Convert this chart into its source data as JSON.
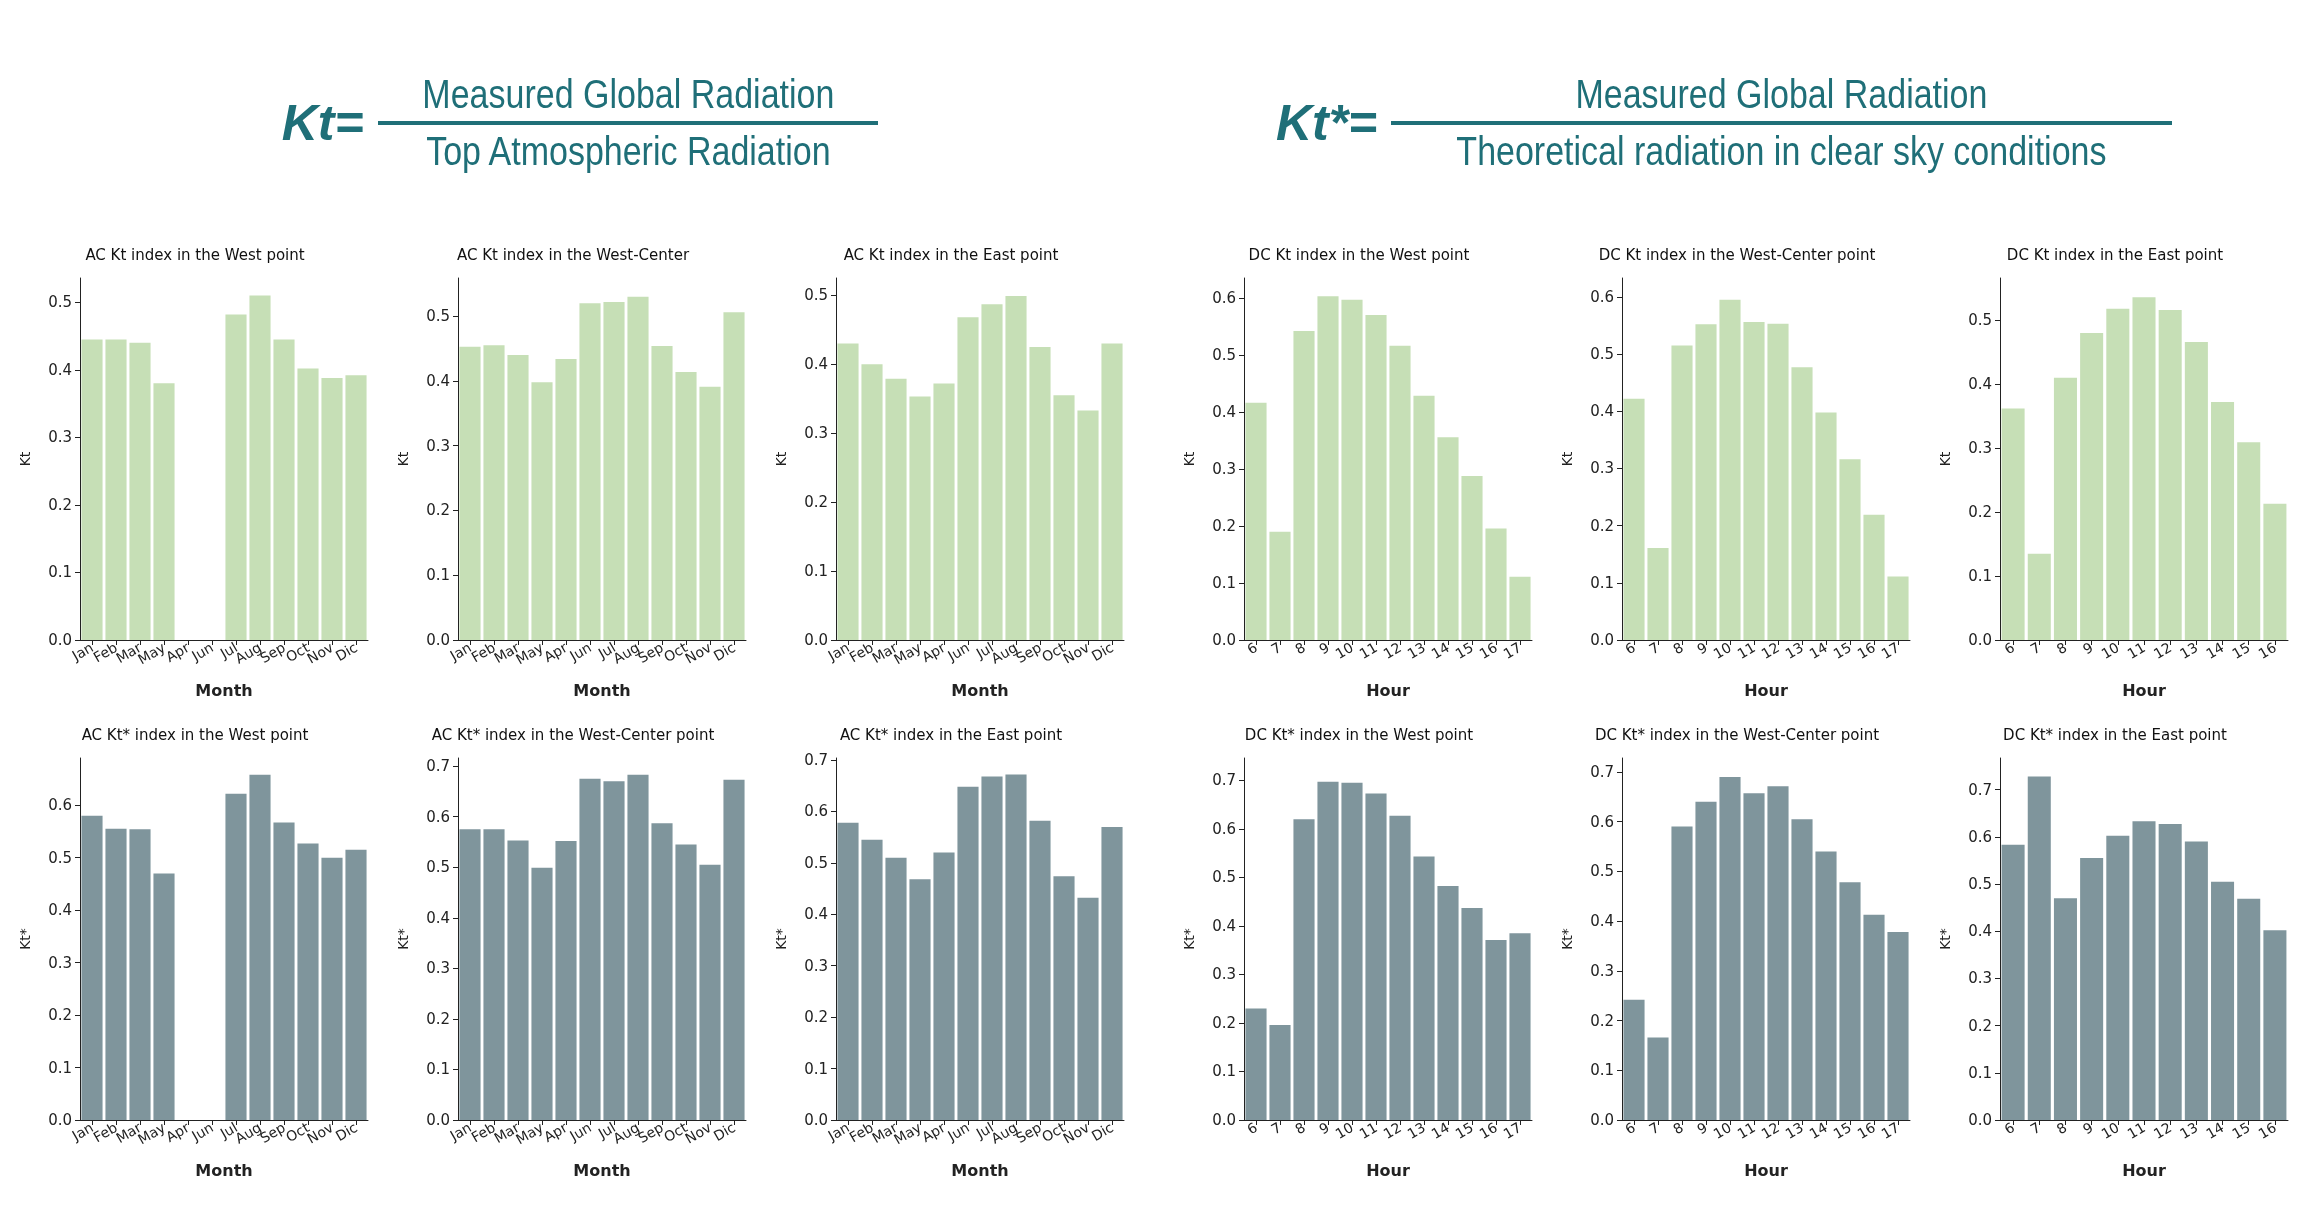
{
  "chart_data": [
    {
      "type": "other",
      "annotations": [
        "Kt=",
        "Measured Global Radiation",
        "Top Atmospheric Radiation"
      ]
    },
    {
      "type": "other",
      "annotations": [
        "Kt*=",
        "Measured Global Radiation",
        "Theoretical radiation in clear sky conditions"
      ]
    },
    {
      "type": "bar",
      "title": "AC Kt index in the West point",
      "xlabel": "Month",
      "ylabel": "Kt",
      "categories": [
        "Jan",
        "Feb",
        "Mar",
        "May",
        "Apr",
        "Jun",
        "Jul",
        "Aug",
        "Sep",
        "Oct",
        "Nov",
        "Dic"
      ],
      "values": [
        0.445,
        0.445,
        0.44,
        0.38,
        null,
        null,
        0.482,
        0.51,
        0.445,
        0.402,
        0.388,
        0.392
      ],
      "color": "#c6dfb6",
      "ylim": [
        0,
        0.536
      ],
      "yticks": [
        {
          "value": 0,
          "label": "0.0"
        },
        {
          "value": 0.1,
          "label": "0.1"
        },
        {
          "value": 0.2,
          "label": "0.2"
        },
        {
          "value": 0.3,
          "label": "0.3"
        },
        {
          "value": 0.4,
          "label": "0.4"
        },
        {
          "value": 0.5,
          "label": "0.5"
        }
      ]
    },
    {
      "type": "bar",
      "title": "AC Kt index in the West-Center",
      "xlabel": "Month",
      "ylabel": "Kt",
      "categories": [
        "Jan",
        "Feb",
        "Mar",
        "May",
        "Apr",
        "Jun",
        "Jul",
        "Aug",
        "Sep",
        "Oct",
        "Nov",
        "Dic"
      ],
      "values": [
        0.453,
        0.455,
        0.44,
        0.398,
        0.434,
        0.52,
        0.522,
        0.53,
        0.454,
        0.414,
        0.391,
        0.506
      ],
      "color": "#c6dfb6",
      "ylim": [
        0,
        0.559
      ],
      "yticks": [
        {
          "value": 0,
          "label": "0.0"
        },
        {
          "value": 0.1,
          "label": "0.1"
        },
        {
          "value": 0.2,
          "label": "0.2"
        },
        {
          "value": 0.3,
          "label": "0.3"
        },
        {
          "value": 0.4,
          "label": "0.4"
        },
        {
          "value": 0.5,
          "label": "0.5"
        }
      ]
    },
    {
      "type": "bar",
      "title": "AC Kt index in the East point",
      "xlabel": "Month",
      "ylabel": "Kt",
      "categories": [
        "Jan",
        "Feb",
        "Mar",
        "May",
        "Apr",
        "Jun",
        "Jul",
        "Aug",
        "Sep",
        "Oct",
        "Nov",
        "Dic"
      ],
      "values": [
        0.43,
        0.4,
        0.379,
        0.353,
        0.372,
        0.468,
        0.487,
        0.499,
        0.425,
        0.355,
        0.333,
        0.43
      ],
      "color": "#c6dfb6",
      "ylim": [
        0,
        0.525
      ],
      "yticks": [
        {
          "value": 0,
          "label": "0.0"
        },
        {
          "value": 0.1,
          "label": "0.1"
        },
        {
          "value": 0.2,
          "label": "0.2"
        },
        {
          "value": 0.3,
          "label": "0.3"
        },
        {
          "value": 0.4,
          "label": "0.4"
        },
        {
          "value": 0.5,
          "label": "0.5"
        }
      ]
    },
    {
      "type": "bar",
      "title": "DC Kt index in the West point",
      "xlabel": "Hour",
      "ylabel": "Kt",
      "categories": [
        "6",
        "7",
        "8",
        "9",
        "10",
        "11",
        "12",
        "13",
        "14",
        "15",
        "16",
        "17"
      ],
      "values": [
        0.417,
        0.19,
        0.543,
        0.604,
        0.598,
        0.571,
        0.517,
        0.429,
        0.356,
        0.288,
        0.196,
        0.111
      ],
      "color": "#c6dfb6",
      "ylim": [
        0,
        0.636
      ],
      "yticks": [
        {
          "value": 0,
          "label": "0.0"
        },
        {
          "value": 0.1,
          "label": "0.1"
        },
        {
          "value": 0.2,
          "label": "0.2"
        },
        {
          "value": 0.3,
          "label": "0.3"
        },
        {
          "value": 0.4,
          "label": "0.4"
        },
        {
          "value": 0.5,
          "label": "0.5"
        },
        {
          "value": 0.6,
          "label": "0.6"
        }
      ]
    },
    {
      "type": "bar",
      "title": "DC Kt index in the West-Center point",
      "xlabel": "Hour",
      "ylabel": "Kt",
      "categories": [
        "6",
        "7",
        "8",
        "9",
        "10",
        "11",
        "12",
        "13",
        "14",
        "15",
        "16",
        "17"
      ],
      "values": [
        0.422,
        0.161,
        0.515,
        0.552,
        0.595,
        0.556,
        0.553,
        0.477,
        0.398,
        0.316,
        0.219,
        0.111
      ],
      "color": "#c6dfb6",
      "ylim": [
        0,
        0.633
      ],
      "yticks": [
        {
          "value": 0,
          "label": "0.0"
        },
        {
          "value": 0.1,
          "label": "0.1"
        },
        {
          "value": 0.2,
          "label": "0.2"
        },
        {
          "value": 0.3,
          "label": "0.3"
        },
        {
          "value": 0.4,
          "label": "0.4"
        },
        {
          "value": 0.5,
          "label": "0.5"
        },
        {
          "value": 0.6,
          "label": "0.6"
        }
      ]
    },
    {
      "type": "bar",
      "title": "DC Kt index in the East point",
      "xlabel": "Hour",
      "ylabel": "Kt",
      "categories": [
        "6",
        "7",
        "8",
        "9",
        "10",
        "11",
        "12",
        "13",
        "14",
        "15",
        "16"
      ],
      "values": [
        0.362,
        0.135,
        0.41,
        0.48,
        0.518,
        0.536,
        0.516,
        0.466,
        0.372,
        0.309,
        0.213
      ],
      "color": "#c6dfb6",
      "ylim": [
        0,
        0.566
      ],
      "yticks": [
        {
          "value": 0,
          "label": "0.0"
        },
        {
          "value": 0.1,
          "label": "0.1"
        },
        {
          "value": 0.2,
          "label": "0.2"
        },
        {
          "value": 0.3,
          "label": "0.3"
        },
        {
          "value": 0.4,
          "label": "0.4"
        },
        {
          "value": 0.5,
          "label": "0.5"
        }
      ]
    },
    {
      "type": "bar",
      "title": "AC Kt* index in the West point",
      "xlabel": "Month",
      "ylabel": "Kt*",
      "categories": [
        "Jan",
        "Feb",
        "Mar",
        "May",
        "Apr",
        "Jun",
        "Jul",
        "Aug",
        "Sep",
        "Oct",
        "Nov",
        "Dic"
      ],
      "values": [
        0.58,
        0.555,
        0.554,
        0.47,
        null,
        null,
        0.622,
        0.658,
        0.567,
        0.527,
        0.5,
        0.515
      ],
      "color": "#7f959c",
      "ylim": [
        0,
        0.69
      ],
      "yticks": [
        {
          "value": 0,
          "label": "0.0"
        },
        {
          "value": 0.1,
          "label": "0.1"
        },
        {
          "value": 0.2,
          "label": "0.2"
        },
        {
          "value": 0.3,
          "label": "0.3"
        },
        {
          "value": 0.4,
          "label": "0.4"
        },
        {
          "value": 0.5,
          "label": "0.5"
        },
        {
          "value": 0.6,
          "label": "0.6"
        }
      ]
    },
    {
      "type": "bar",
      "title": "AC Kt* index in the West-Center point",
      "xlabel": "Month",
      "ylabel": "Kt*",
      "categories": [
        "Jan",
        "Feb",
        "Mar",
        "May",
        "Apr",
        "Jun",
        "Jul",
        "Aug",
        "Sep",
        "Oct",
        "Nov",
        "Dic"
      ],
      "values": [
        0.575,
        0.575,
        0.553,
        0.499,
        0.552,
        0.675,
        0.67,
        0.683,
        0.587,
        0.545,
        0.505,
        0.673
      ],
      "color": "#7f959c",
      "ylim": [
        0,
        0.716
      ],
      "yticks": [
        {
          "value": 0,
          "label": "0.0"
        },
        {
          "value": 0.1,
          "label": "0.1"
        },
        {
          "value": 0.2,
          "label": "0.2"
        },
        {
          "value": 0.3,
          "label": "0.3"
        },
        {
          "value": 0.4,
          "label": "0.4"
        },
        {
          "value": 0.5,
          "label": "0.5"
        },
        {
          "value": 0.6,
          "label": "0.6"
        },
        {
          "value": 0.7,
          "label": "0.7"
        }
      ]
    },
    {
      "type": "bar",
      "title": "AC Kt* index in the East point",
      "xlabel": "Month",
      "ylabel": "Kt*",
      "categories": [
        "Jan",
        "Feb",
        "Mar",
        "May",
        "Apr",
        "Jun",
        "Jul",
        "Aug",
        "Sep",
        "Oct",
        "Nov",
        "Dic"
      ],
      "values": [
        0.578,
        0.545,
        0.51,
        0.468,
        0.52,
        0.648,
        0.668,
        0.672,
        0.582,
        0.474,
        0.432,
        0.57
      ],
      "color": "#7f959c",
      "ylim": [
        0,
        0.704
      ],
      "yticks": [
        {
          "value": 0,
          "label": "0.0"
        },
        {
          "value": 0.1,
          "label": "0.1"
        },
        {
          "value": 0.2,
          "label": "0.2"
        },
        {
          "value": 0.3,
          "label": "0.3"
        },
        {
          "value": 0.4,
          "label": "0.4"
        },
        {
          "value": 0.5,
          "label": "0.5"
        },
        {
          "value": 0.6,
          "label": "0.6"
        },
        {
          "value": 0.7,
          "label": "0.7"
        }
      ]
    },
    {
      "type": "bar",
      "title": "DC Kt* index in the West point",
      "xlabel": "Hour",
      "ylabel": "Kt*",
      "categories": [
        "6",
        "7",
        "8",
        "9",
        "10",
        "11",
        "12",
        "13",
        "14",
        "15",
        "16",
        "17"
      ],
      "values": [
        0.23,
        0.196,
        0.62,
        0.697,
        0.695,
        0.673,
        0.627,
        0.543,
        0.482,
        0.437,
        0.371,
        0.385
      ],
      "color": "#7f959c",
      "ylim": [
        0,
        0.746
      ],
      "yticks": [
        {
          "value": 0,
          "label": "0.0"
        },
        {
          "value": 0.1,
          "label": "0.1"
        },
        {
          "value": 0.2,
          "label": "0.2"
        },
        {
          "value": 0.3,
          "label": "0.3"
        },
        {
          "value": 0.4,
          "label": "0.4"
        },
        {
          "value": 0.5,
          "label": "0.5"
        },
        {
          "value": 0.6,
          "label": "0.6"
        },
        {
          "value": 0.7,
          "label": "0.7"
        }
      ]
    },
    {
      "type": "bar",
      "title": "DC Kt* index in the West-Center point",
      "xlabel": "Hour",
      "ylabel": "Kt*",
      "categories": [
        "6",
        "7",
        "8",
        "9",
        "10",
        "11",
        "12",
        "13",
        "14",
        "15",
        "16",
        "17"
      ],
      "values": [
        0.242,
        0.166,
        0.59,
        0.64,
        0.69,
        0.657,
        0.671,
        0.605,
        0.54,
        0.478,
        0.413,
        0.378
      ],
      "color": "#7f959c",
      "ylim": [
        0,
        0.728
      ],
      "yticks": [
        {
          "value": 0,
          "label": "0.0"
        },
        {
          "value": 0.1,
          "label": "0.1"
        },
        {
          "value": 0.2,
          "label": "0.2"
        },
        {
          "value": 0.3,
          "label": "0.3"
        },
        {
          "value": 0.4,
          "label": "0.4"
        },
        {
          "value": 0.5,
          "label": "0.5"
        },
        {
          "value": 0.6,
          "label": "0.6"
        },
        {
          "value": 0.7,
          "label": "0.7"
        }
      ]
    },
    {
      "type": "bar",
      "title": "DC Kt* index in the East point",
      "xlabel": "Hour",
      "ylabel": "Kt*",
      "categories": [
        "6",
        "7",
        "8",
        "9",
        "10",
        "11",
        "12",
        "13",
        "14",
        "15",
        "16"
      ],
      "values": [
        0.583,
        0.728,
        0.47,
        0.555,
        0.602,
        0.633,
        0.627,
        0.59,
        0.505,
        0.469,
        0.402
      ],
      "color": "#7f959c",
      "ylim": [
        0,
        0.767
      ],
      "yticks": [
        {
          "value": 0,
          "label": "0.0"
        },
        {
          "value": 0.1,
          "label": "0.1"
        },
        {
          "value": 0.2,
          "label": "0.2"
        },
        {
          "value": 0.3,
          "label": "0.3"
        },
        {
          "value": 0.4,
          "label": "0.4"
        },
        {
          "value": 0.5,
          "label": "0.5"
        },
        {
          "value": 0.6,
          "label": "0.6"
        },
        {
          "value": 0.7,
          "label": "0.7"
        }
      ]
    }
  ]
}
